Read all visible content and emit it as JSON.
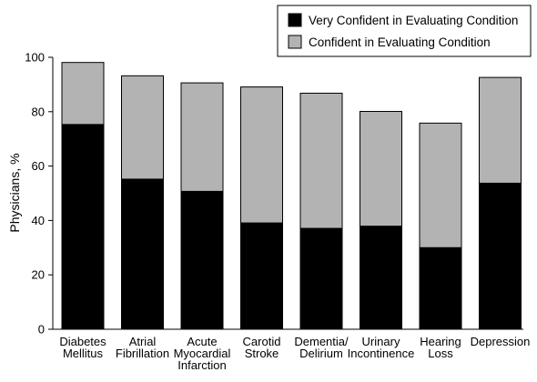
{
  "chart_data": {
    "type": "bar",
    "stacked": false,
    "overlay": true,
    "title": "",
    "xlabel": "",
    "ylabel": "Physicians, %",
    "ylim": [
      0,
      100
    ],
    "yticks": [
      0,
      20,
      40,
      60,
      80,
      100
    ],
    "grid": false,
    "legend_position": "top-right",
    "categories": [
      [
        "Diabetes",
        "Mellitus"
      ],
      [
        "Atrial",
        "Fibrillation"
      ],
      [
        "Acute",
        "Myocardial",
        "Infarction"
      ],
      [
        "Carotid",
        "Stroke"
      ],
      [
        "Dementia/",
        "Delirium"
      ],
      [
        "Urinary",
        "Incontinence"
      ],
      [
        "Hearing",
        "Loss"
      ],
      [
        "Depression"
      ]
    ],
    "series": [
      {
        "name": "Very Confident in Evaluating Condition",
        "color": "#000000",
        "values": [
          75.3,
          55.2,
          50.7,
          39.1,
          37.1,
          37.9,
          30.0,
          53.7
        ]
      },
      {
        "name": "Confident in Evaluating Condition",
        "color": "#b3b3b3",
        "values": [
          98.1,
          93.2,
          90.6,
          89.1,
          86.8,
          80.1,
          75.8,
          92.6
        ]
      }
    ]
  }
}
